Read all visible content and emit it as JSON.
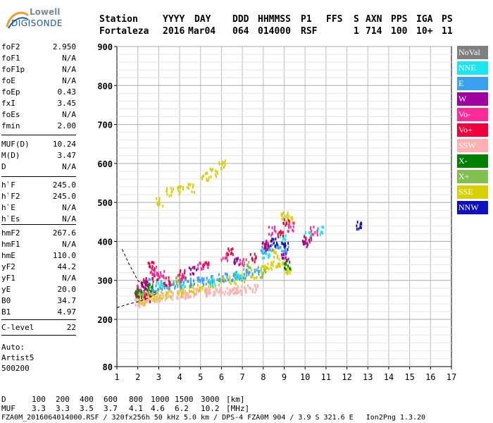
{
  "logo": {
    "line1": "Lowell",
    "line2": "DIGISONDE"
  },
  "header": {
    "row1": [
      "Station",
      "YYYY",
      "DAY",
      "DDD",
      "HHMMSS",
      "P1",
      "FFS",
      "S",
      "AXN",
      "PPS",
      "IGA",
      "PS"
    ],
    "row2": [
      "Fortaleza",
      "2016",
      "Mar04",
      "064",
      "014000",
      "RSF",
      "1",
      "714",
      "100",
      "10+",
      "11"
    ]
  },
  "params": [
    {
      "k": "foF2",
      "v": "2.950"
    },
    {
      "k": "foF1",
      "v": "N/A"
    },
    {
      "k": "foF1p",
      "v": "N/A"
    },
    {
      "k": "foE",
      "v": "N/A"
    },
    {
      "k": "foEp",
      "v": "0.43"
    },
    {
      "k": "fxI",
      "v": "3.45"
    },
    {
      "k": "foEs",
      "v": "N/A"
    },
    {
      "k": "fmin",
      "v": "2.00"
    },
    {
      "k": "MUF(D)",
      "v": "10.24"
    },
    {
      "k": "M(D)",
      "v": "3.47"
    },
    {
      "k": "D",
      "v": "N/A"
    },
    {
      "k": "h`F",
      "v": "245.0"
    },
    {
      "k": "h`F2",
      "v": "245.0"
    },
    {
      "k": "h`E",
      "v": "N/A"
    },
    {
      "k": "h`Es",
      "v": "N/A"
    },
    {
      "k": "hmF2",
      "v": "267.6"
    },
    {
      "k": "hmF1",
      "v": "N/A"
    },
    {
      "k": "hmE",
      "v": "110.0"
    },
    {
      "k": "yF2",
      "v": "44.2"
    },
    {
      "k": "yF1",
      "v": "N/A"
    },
    {
      "k": "yE",
      "v": "20.0"
    },
    {
      "k": "B0",
      "v": "34.7"
    },
    {
      "k": "B1",
      "v": "4.97"
    },
    {
      "k": "C-level",
      "v": "22"
    }
  ],
  "auto": {
    "l1": "Auto:",
    "l2": "Artist5",
    "l3": "500200"
  },
  "legend": [
    {
      "label": "NoVal",
      "color": "#7f7f7f"
    },
    {
      "label": "NNE",
      "color": "#19e6f0"
    },
    {
      "label": "E",
      "color": "#3aa0f0"
    },
    {
      "label": "W",
      "color": "#a000a0"
    },
    {
      "label": "Vo-",
      "color": "#ff2a9a"
    },
    {
      "label": "Vo+",
      "color": "#f0003a"
    },
    {
      "label": "SSW",
      "color": "#ffb0b0"
    },
    {
      "label": "X-",
      "color": "#008000"
    },
    {
      "label": "X+",
      "color": "#80c050"
    },
    {
      "label": "SSE",
      "color": "#d8d000"
    },
    {
      "label": "NNW",
      "color": "#1010c0"
    }
  ],
  "footer": {
    "d_label": "D",
    "d_values": [
      "100",
      "200",
      "400",
      "600",
      "800",
      "1000",
      "1500",
      "3000"
    ],
    "d_unit": "[km]",
    "muf_label": "MUF",
    "muf_values": [
      "3.3",
      "3.3",
      "3.5",
      "3.7",
      "4.1",
      "4.6",
      "6.2",
      "10.2"
    ],
    "muf_unit": "[MHz]",
    "status": "FZA0M_2016064014000.RSF / 320fx256h 50 kHz 5.0 km / DPS-4 FZA0M 904 / 3.9 S 321.6 E   Ion2Png 1.3.20"
  },
  "chart_data": {
    "type": "scatter",
    "xlim": [
      1,
      17
    ],
    "ylim": [
      80,
      900
    ],
    "xticks": [
      1,
      2,
      3,
      4,
      5,
      6,
      7,
      8,
      9,
      10,
      11,
      12,
      13,
      14,
      15,
      16,
      17
    ],
    "yticks": [
      80,
      200,
      300,
      400,
      500,
      600,
      700,
      800,
      900
    ],
    "grid": true,
    "clusters": [
      {
        "name": "SSW",
        "color": "#ffb0b0",
        "points": [
          [
            2.0,
            245
          ],
          [
            2.4,
            255
          ],
          [
            2.8,
            258
          ],
          [
            3.2,
            262
          ],
          [
            3.6,
            265
          ],
          [
            4.0,
            268
          ],
          [
            4.4,
            270
          ],
          [
            4.8,
            272
          ],
          [
            5.2,
            272
          ],
          [
            5.6,
            275
          ],
          [
            6.0,
            275
          ],
          [
            6.4,
            278
          ],
          [
            6.8,
            278
          ],
          [
            7.2,
            280
          ],
          [
            7.6,
            282
          ],
          [
            2.2,
            250
          ],
          [
            3.0,
            260
          ],
          [
            4.2,
            266
          ],
          [
            5.4,
            270
          ],
          [
            6.6,
            276
          ]
        ]
      },
      {
        "name": "SSE",
        "color": "#d8d000",
        "points": [
          [
            2.2,
            250
          ],
          [
            2.6,
            258
          ],
          [
            3.0,
            265
          ],
          [
            3.5,
            270
          ],
          [
            4.0,
            275
          ],
          [
            4.5,
            280
          ],
          [
            5.0,
            285
          ],
          [
            5.5,
            295
          ],
          [
            6.0,
            300
          ],
          [
            6.5,
            305
          ],
          [
            7.0,
            310
          ],
          [
            7.5,
            320
          ],
          [
            8.0,
            330
          ],
          [
            8.3,
            340
          ],
          [
            8.6,
            345
          ],
          [
            8.9,
            350
          ],
          [
            9.2,
            330
          ],
          [
            8.5,
            370
          ],
          [
            3.0,
            505
          ],
          [
            3.5,
            530
          ],
          [
            4.0,
            535
          ],
          [
            4.5,
            540
          ],
          [
            5.2,
            570
          ],
          [
            5.6,
            580
          ],
          [
            6.0,
            600
          ],
          [
            9.0,
            470
          ],
          [
            9.2,
            460
          ]
        ]
      },
      {
        "name": "E",
        "color": "#3aa0f0",
        "points": [
          [
            2.4,
            300
          ],
          [
            2.8,
            285
          ],
          [
            3.2,
            290
          ],
          [
            3.6,
            292
          ],
          [
            4.0,
            295
          ],
          [
            4.4,
            298
          ],
          [
            4.8,
            300
          ],
          [
            5.2,
            302
          ],
          [
            5.6,
            305
          ],
          [
            6.0,
            310
          ],
          [
            6.4,
            312
          ],
          [
            6.8,
            315
          ],
          [
            7.2,
            320
          ],
          [
            7.6,
            330
          ],
          [
            8.0,
            380
          ],
          [
            8.3,
            385
          ],
          [
            8.7,
            395
          ],
          [
            9.0,
            380
          ]
        ]
      },
      {
        "name": "NNE",
        "color": "#19e6f0",
        "points": [
          [
            3.0,
            295
          ],
          [
            4.2,
            298
          ],
          [
            5.5,
            300
          ],
          [
            6.8,
            318
          ],
          [
            8.1,
            370
          ],
          [
            8.9,
            410
          ],
          [
            10.1,
            420
          ],
          [
            10.7,
            430
          ]
        ]
      },
      {
        "name": "Vo+",
        "color": "#f0003a",
        "points": [
          [
            2.0,
            270
          ],
          [
            2.3,
            300
          ],
          [
            2.6,
            340
          ],
          [
            2.8,
            310
          ],
          [
            2.4,
            260
          ],
          [
            3.4,
            300
          ],
          [
            4.1,
            320
          ],
          [
            5.2,
            340
          ],
          [
            6.4,
            380
          ],
          [
            7.5,
            360
          ],
          [
            8.2,
            400
          ],
          [
            8.8,
            420
          ],
          [
            9.1,
            450
          ],
          [
            10.1,
            410
          ]
        ]
      },
      {
        "name": "Vo-",
        "color": "#ff2a9a",
        "points": [
          [
            2.1,
            280
          ],
          [
            2.7,
            330
          ],
          [
            3.1,
            320
          ],
          [
            4.0,
            310
          ],
          [
            5.0,
            340
          ],
          [
            6.1,
            360
          ],
          [
            7.0,
            350
          ],
          [
            8.4,
            430
          ],
          [
            9.3,
            440
          ],
          [
            10.4,
            430
          ]
        ]
      },
      {
        "name": "W",
        "color": "#a000a0",
        "points": [
          [
            2.3,
            290
          ],
          [
            4.6,
            330
          ],
          [
            6.7,
            350
          ],
          [
            8.1,
            390
          ],
          [
            9.0,
            360
          ],
          [
            10.0,
            400
          ]
        ]
      },
      {
        "name": "X+",
        "color": "#80c050",
        "points": [
          [
            2.1,
            265
          ],
          [
            2.6,
            275
          ],
          [
            3.8,
            300
          ],
          [
            7.2,
            340
          ],
          [
            8.0,
            320
          ]
        ]
      },
      {
        "name": "X-",
        "color": "#008000",
        "points": [
          [
            2.0,
            270
          ],
          [
            2.5,
            285
          ],
          [
            9.1,
            340
          ]
        ]
      },
      {
        "name": "NNW",
        "color": "#1010c0",
        "points": [
          [
            8.5,
            400
          ],
          [
            9.0,
            390
          ],
          [
            12.6,
            445
          ]
        ]
      }
    ],
    "profile_curve": [
      [
        1.25,
        380
      ],
      [
        1.6,
        340
      ],
      [
        2.0,
        300
      ],
      [
        2.4,
        280
      ],
      [
        2.7,
        270
      ],
      [
        2.95,
        267.6
      ]
    ],
    "profile_lower": [
      [
        1.0,
        230
      ],
      [
        1.6,
        240
      ],
      [
        2.0,
        245
      ],
      [
        2.5,
        255
      ],
      [
        2.95,
        267.6
      ]
    ]
  }
}
